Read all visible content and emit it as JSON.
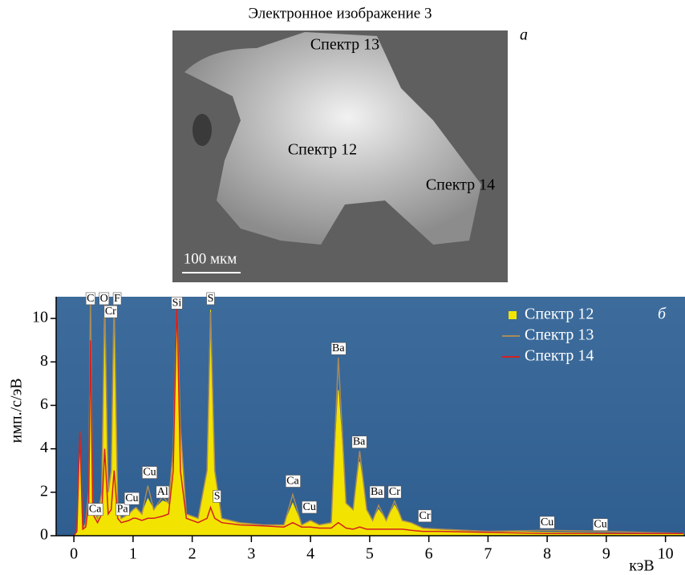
{
  "image": {
    "title": "Электронное изображение 3",
    "panel_label": "а",
    "spectrum_labels": [
      "Спектр 13",
      "Спектр 12",
      "Спектр 14"
    ],
    "scale_bar": "100 мкм"
  },
  "chart_data": {
    "type": "line",
    "panel_label": "б",
    "ylabel": "имп./с/эВ",
    "xlabel": "кэВ",
    "x": [
      0,
      0.05,
      0.1,
      0.15,
      0.2,
      0.25,
      0.28,
      0.32,
      0.4,
      0.47,
      0.52,
      0.58,
      0.63,
      0.68,
      0.74,
      0.8,
      0.93,
      1.0,
      1.05,
      1.15,
      1.25,
      1.35,
      1.5,
      1.6,
      1.68,
      1.74,
      1.8,
      1.9,
      2.1,
      2.25,
      2.31,
      2.38,
      2.5,
      2.8,
      3.2,
      3.55,
      3.7,
      3.85,
      4.0,
      4.15,
      4.35,
      4.47,
      4.6,
      4.72,
      4.83,
      4.95,
      5.05,
      5.15,
      5.28,
      5.42,
      5.55,
      5.7,
      5.9,
      6.2,
      7.0,
      8.0,
      9.0,
      10.3
    ],
    "series": [
      {
        "name": "Спектр 12",
        "color": "#f2e400",
        "style": "area",
        "values": [
          0,
          0.2,
          4.6,
          0.3,
          0.6,
          2,
          11,
          1.2,
          0.8,
          2,
          11,
          2,
          3,
          11,
          1.5,
          0.8,
          1.0,
          1.2,
          1.3,
          1.0,
          1.7,
          1.2,
          1.6,
          1.5,
          4,
          11,
          5,
          1.0,
          0.8,
          3,
          10.4,
          3,
          0.8,
          0.6,
          0.5,
          0.5,
          1.5,
          0.5,
          0.7,
          0.5,
          0.6,
          6.7,
          1.5,
          1.2,
          3.4,
          1.2,
          0.7,
          1.2,
          0.7,
          1.4,
          0.7,
          0.6,
          0.35,
          0.3,
          0.2,
          0.15,
          0.12,
          0.1
        ]
      },
      {
        "name": "Спектр 13",
        "color": "#a88a5a",
        "style": "line",
        "values": [
          0,
          0.2,
          4.8,
          0.3,
          0.6,
          2,
          11,
          1.2,
          0.8,
          2,
          11,
          2,
          3,
          11,
          1.5,
          0.8,
          1.0,
          1.2,
          1.3,
          1.0,
          2.3,
          1.2,
          1.8,
          1.5,
          4,
          11,
          5,
          1.0,
          0.8,
          3,
          10.3,
          3,
          0.8,
          0.6,
          0.5,
          0.5,
          1.9,
          0.5,
          0.7,
          0.5,
          0.6,
          8.2,
          1.5,
          1.2,
          3.9,
          1.2,
          0.7,
          1.4,
          0.7,
          1.6,
          0.7,
          0.6,
          0.35,
          0.3,
          0.2,
          0.25,
          0.2,
          0.1
        ]
      },
      {
        "name": "Спектр 14",
        "color": "#d42020",
        "style": "line",
        "values": [
          0,
          0.2,
          4.8,
          0.3,
          0.4,
          1.5,
          9,
          1.0,
          0.6,
          1.0,
          4,
          1.0,
          1.2,
          3,
          0.8,
          0.6,
          0.7,
          0.8,
          0.8,
          0.7,
          0.8,
          0.8,
          0.9,
          1.0,
          3,
          11,
          3,
          0.8,
          0.6,
          0.8,
          1.3,
          0.8,
          0.6,
          0.5,
          0.45,
          0.4,
          0.6,
          0.4,
          0.4,
          0.35,
          0.35,
          0.6,
          0.35,
          0.3,
          0.4,
          0.3,
          0.3,
          0.3,
          0.3,
          0.3,
          0.3,
          0.25,
          0.2,
          0.2,
          0.15,
          0.1,
          0.1,
          0.1
        ]
      }
    ],
    "peak_labels": [
      {
        "label": "C",
        "x": 0.28,
        "y": 10.9
      },
      {
        "label": "O",
        "x": 0.51,
        "y": 10.9
      },
      {
        "label": "F",
        "x": 0.73,
        "y": 10.9
      },
      {
        "label": "Cr",
        "x": 0.62,
        "y": 10.3
      },
      {
        "label": "Ca",
        "x": 0.36,
        "y": 1.2
      },
      {
        "label": "Pa",
        "x": 0.82,
        "y": 1.2
      },
      {
        "label": "Cu",
        "x": 0.98,
        "y": 1.7
      },
      {
        "label": "Cu",
        "x": 1.28,
        "y": 2.9
      },
      {
        "label": "Al",
        "x": 1.5,
        "y": 2.0
      },
      {
        "label": "Si",
        "x": 1.74,
        "y": 10.7
      },
      {
        "label": "S",
        "x": 2.31,
        "y": 10.9
      },
      {
        "label": "S",
        "x": 2.42,
        "y": 1.8
      },
      {
        "label": "Ca",
        "x": 3.7,
        "y": 2.5
      },
      {
        "label": "Cu",
        "x": 3.98,
        "y": 1.3
      },
      {
        "label": "Ba",
        "x": 4.47,
        "y": 8.6
      },
      {
        "label": "Ba",
        "x": 4.82,
        "y": 4.3
      },
      {
        "label": "Ba",
        "x": 5.12,
        "y": 2.0
      },
      {
        "label": "Cr",
        "x": 5.42,
        "y": 2.0
      },
      {
        "label": "Cr",
        "x": 5.93,
        "y": 0.9
      },
      {
        "label": "Cu",
        "x": 8.0,
        "y": 0.6
      },
      {
        "label": "Cu",
        "x": 8.9,
        "y": 0.5
      }
    ],
    "xlim": [
      -0.3,
      10.33
    ],
    "ylim": [
      0,
      11
    ],
    "xticks": [
      0,
      1,
      2,
      3,
      4,
      5,
      6,
      7,
      8,
      9,
      10
    ],
    "yticks": [
      0,
      2,
      4,
      6,
      8,
      10
    ],
    "legend": "upper right"
  }
}
